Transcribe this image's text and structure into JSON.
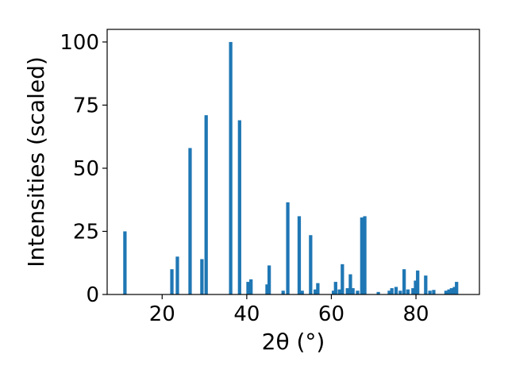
{
  "chart_data": {
    "type": "bar",
    "xlabel": "2θ (°)",
    "ylabel": "Intensities (scaled)",
    "xlim": [
      7,
      95
    ],
    "ylim": [
      0,
      105
    ],
    "xticks": [
      20,
      40,
      60,
      80
    ],
    "yticks": [
      0,
      25,
      50,
      75,
      100
    ],
    "grid": false,
    "bar_color": "#1f77b4",
    "bar_width": 0.8,
    "x": [
      11.2,
      22.3,
      23.6,
      26.6,
      29.4,
      30.4,
      36.2,
      38.3,
      40.3,
      41.0,
      44.8,
      45.3,
      48.6,
      49.7,
      52.4,
      53.1,
      55.1,
      56.2,
      56.8,
      60.5,
      61.0,
      61.9,
      62.6,
      63.8,
      64.5,
      65.1,
      66.2,
      67.2,
      67.9,
      71.1,
      73.7,
      74.3,
      75.3,
      76.3,
      77.2,
      78.1,
      79.3,
      79.9,
      80.4,
      82.3,
      83.3,
      84.2,
      87.1,
      87.8,
      88.4,
      89.1,
      89.6
    ],
    "values": [
      25,
      10,
      15,
      58,
      14,
      71,
      100,
      69,
      5,
      6,
      4,
      11.5,
      1.5,
      36.5,
      31,
      1.5,
      23.5,
      2,
      4.5,
      1.5,
      5,
      2,
      12,
      2.5,
      8,
      2.5,
      1.5,
      30.5,
      31,
      1,
      1.5,
      2.5,
      3,
      1.5,
      10,
      2,
      2.5,
      5.5,
      9.5,
      7.5,
      1.5,
      1.8,
      1.5,
      2,
      2.5,
      3,
      5
    ]
  }
}
